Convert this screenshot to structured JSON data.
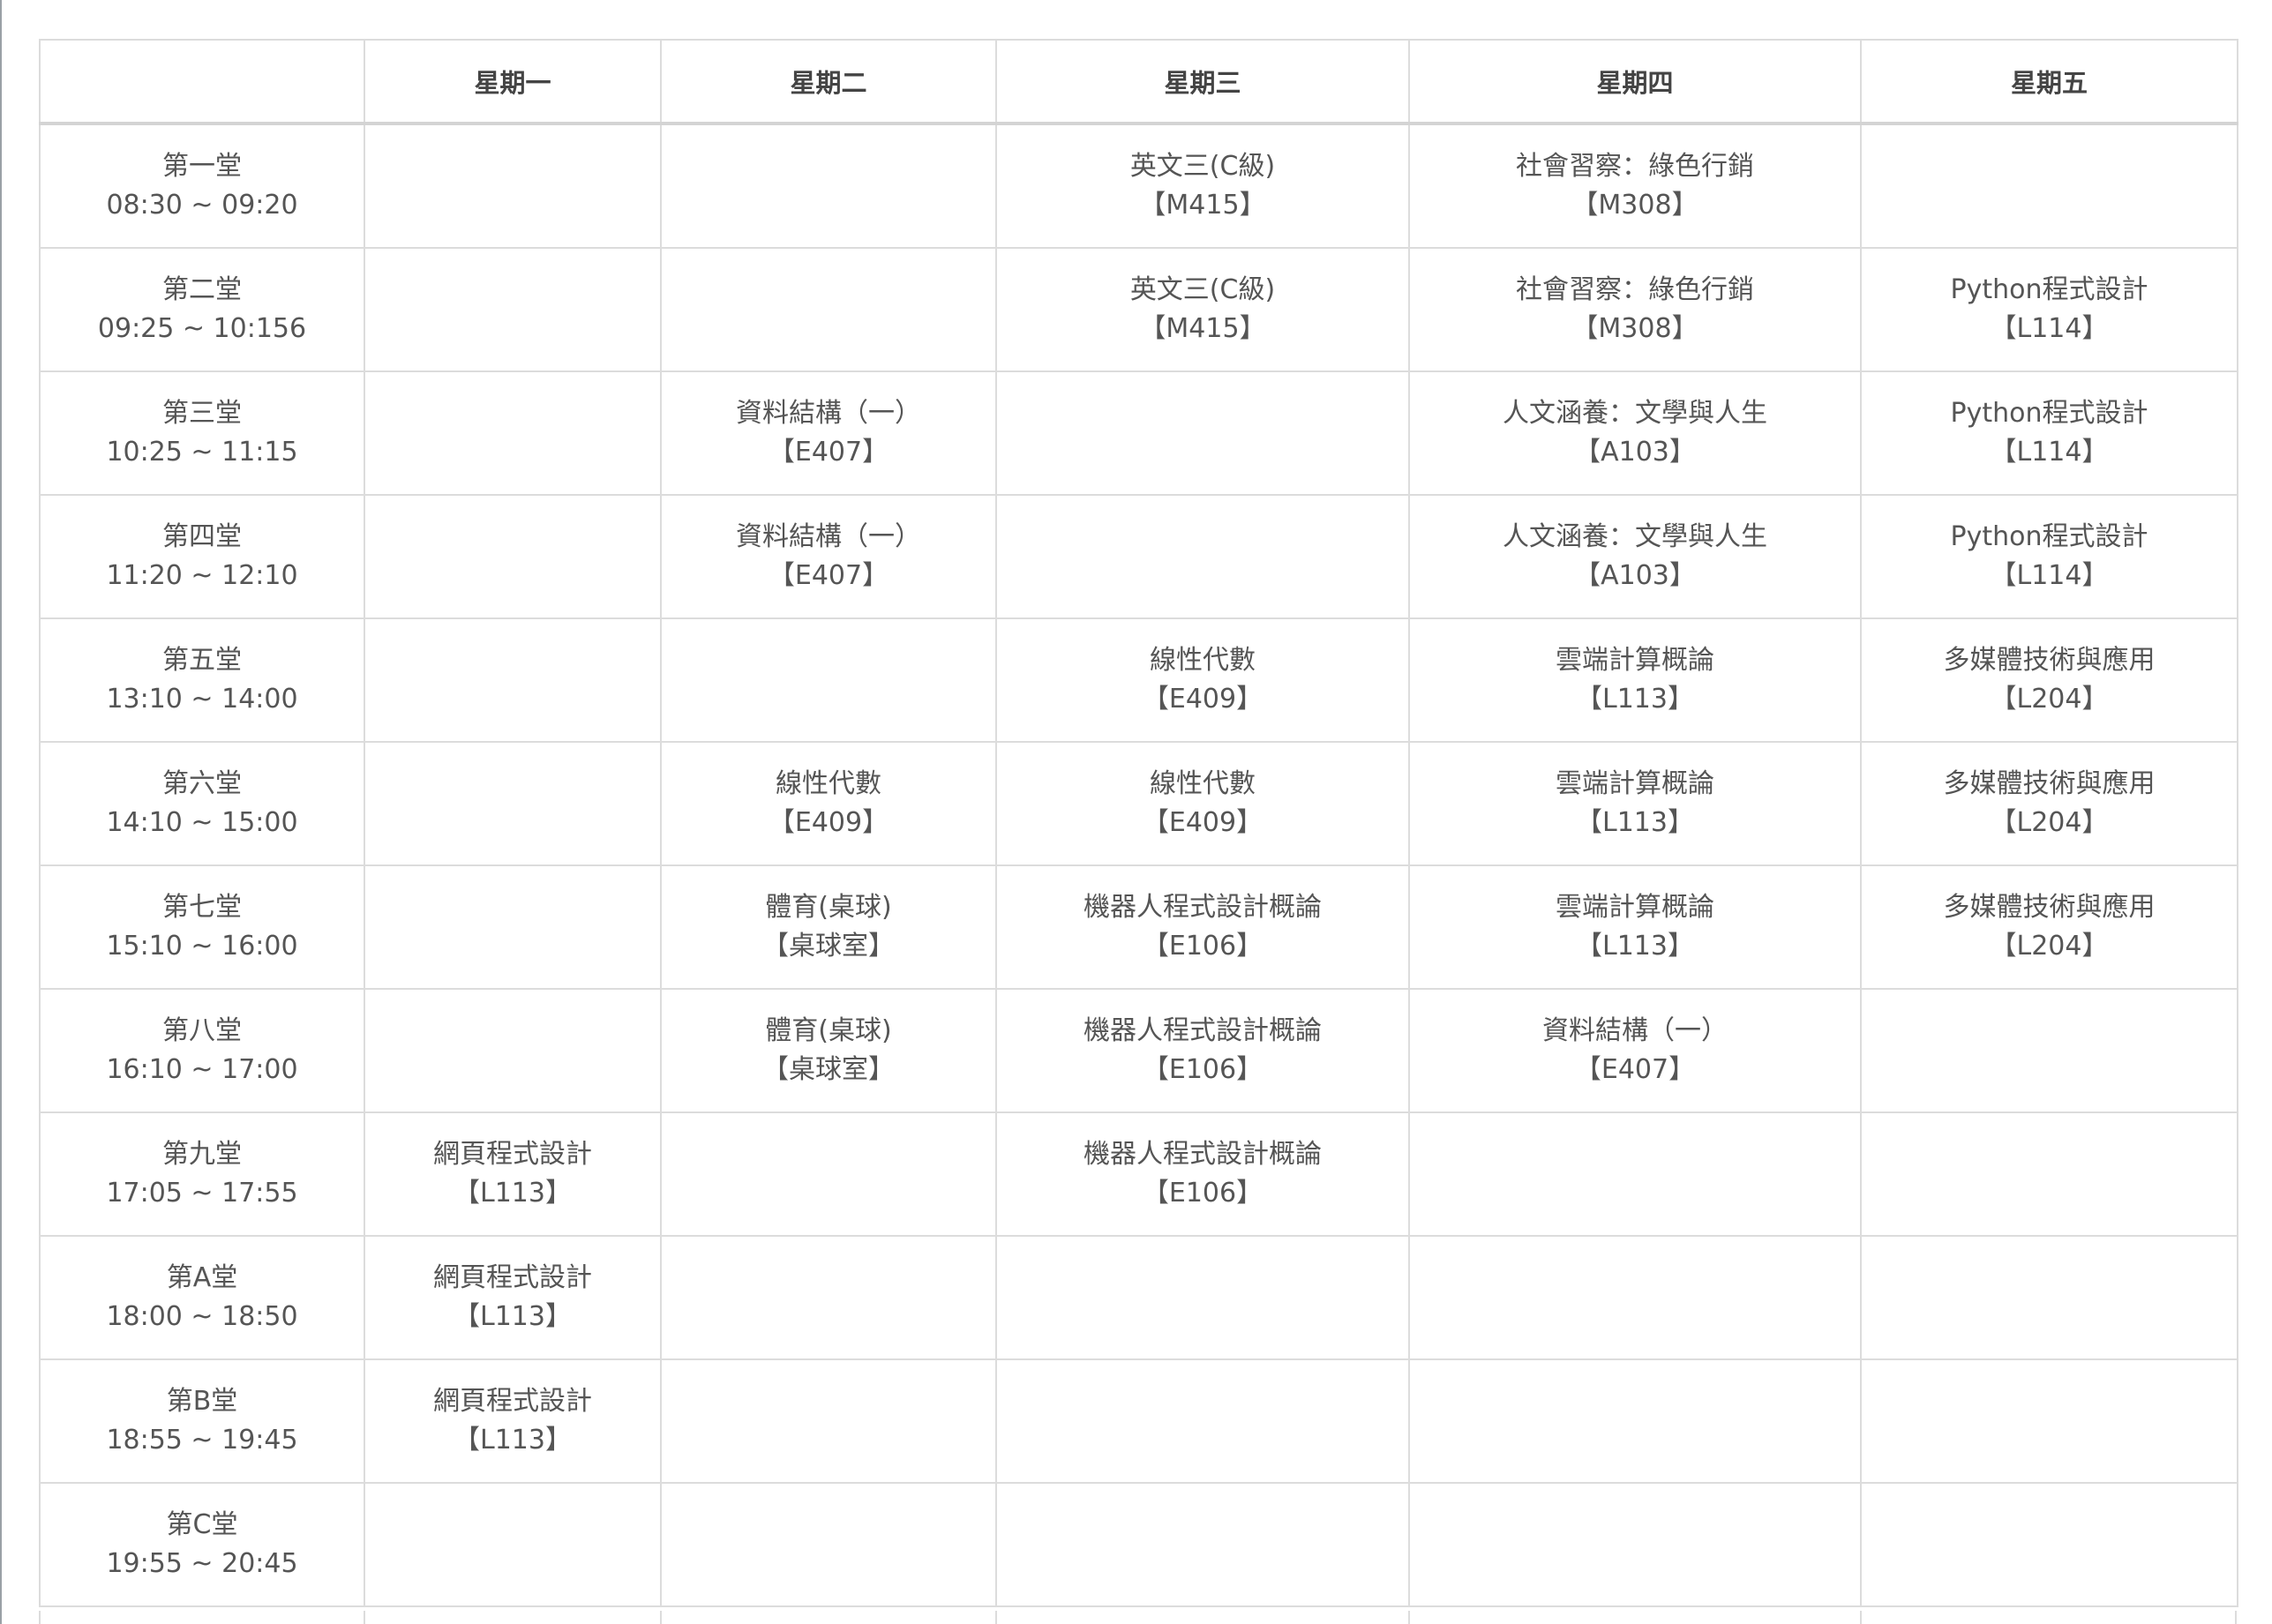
{
  "header": {
    "corner": "",
    "days": [
      "星期一",
      "星期二",
      "星期三",
      "星期四",
      "星期五"
    ]
  },
  "rows": [
    {
      "period": "第一堂",
      "time": "08:30 ~ 09:20",
      "cells": [
        null,
        null,
        {
          "name": "英文三(C級)",
          "room": "【M415】"
        },
        {
          "name": "社會習察：綠色行銷",
          "room": "【M308】"
        },
        null
      ]
    },
    {
      "period": "第二堂",
      "time": "09:25 ~ 10:156",
      "cells": [
        null,
        null,
        {
          "name": "英文三(C級)",
          "room": "【M415】"
        },
        {
          "name": "社會習察：綠色行銷",
          "room": "【M308】"
        },
        {
          "name": "Python程式設計",
          "room": "【L114】"
        }
      ]
    },
    {
      "period": "第三堂",
      "time": "10:25 ~ 11:15",
      "cells": [
        null,
        {
          "name": "資料結構（一）",
          "room": "【E407】"
        },
        null,
        {
          "name": "人文涵養：文學與人生",
          "room": "【A103】"
        },
        {
          "name": "Python程式設計",
          "room": "【L114】"
        }
      ]
    },
    {
      "period": "第四堂",
      "time": "11:20 ~ 12:10",
      "cells": [
        null,
        {
          "name": "資料結構（一）",
          "room": "【E407】"
        },
        null,
        {
          "name": "人文涵養：文學與人生",
          "room": "【A103】"
        },
        {
          "name": "Python程式設計",
          "room": "【L114】"
        }
      ]
    },
    {
      "period": "第五堂",
      "time": "13:10 ~ 14:00",
      "cells": [
        null,
        null,
        {
          "name": "線性代數",
          "room": "【E409】"
        },
        {
          "name": "雲端計算概論",
          "room": "【L113】"
        },
        {
          "name": "多媒體技術與應用",
          "room": "【L204】"
        }
      ]
    },
    {
      "period": "第六堂",
      "time": "14:10 ~ 15:00",
      "cells": [
        null,
        {
          "name": "線性代數",
          "room": "【E409】"
        },
        {
          "name": "線性代數",
          "room": "【E409】"
        },
        {
          "name": "雲端計算概論",
          "room": "【L113】"
        },
        {
          "name": "多媒體技術與應用",
          "room": "【L204】"
        }
      ]
    },
    {
      "period": "第七堂",
      "time": "15:10 ~ 16:00",
      "cells": [
        null,
        {
          "name": "體育(桌球)",
          "room": "【桌球室】"
        },
        {
          "name": "機器人程式設計概論",
          "room": "【E106】"
        },
        {
          "name": "雲端計算概論",
          "room": "【L113】"
        },
        {
          "name": "多媒體技術與應用",
          "room": "【L204】"
        }
      ]
    },
    {
      "period": "第八堂",
      "time": "16:10 ~ 17:00",
      "cells": [
        null,
        {
          "name": "體育(桌球)",
          "room": "【桌球室】"
        },
        {
          "name": "機器人程式設計概論",
          "room": "【E106】"
        },
        {
          "name": "資料結構（一）",
          "room": "【E407】"
        },
        null
      ]
    },
    {
      "period": "第九堂",
      "time": "17:05 ~ 17:55",
      "cells": [
        {
          "name": "網頁程式設計",
          "room": "【L113】"
        },
        null,
        {
          "name": "機器人程式設計概論",
          "room": "【E106】"
        },
        null,
        null
      ]
    },
    {
      "period": "第A堂",
      "time": "18:00 ~ 18:50",
      "cells": [
        {
          "name": "網頁程式設計",
          "room": "【L113】"
        },
        null,
        null,
        null,
        null
      ]
    },
    {
      "period": "第B堂",
      "time": "18:55 ~ 19:45",
      "cells": [
        {
          "name": "網頁程式設計",
          "room": "【L113】"
        },
        null,
        null,
        null,
        null
      ]
    },
    {
      "period": "第C堂",
      "time": "19:55 ~ 20:45",
      "cells": [
        null,
        null,
        null,
        null,
        null
      ]
    }
  ]
}
